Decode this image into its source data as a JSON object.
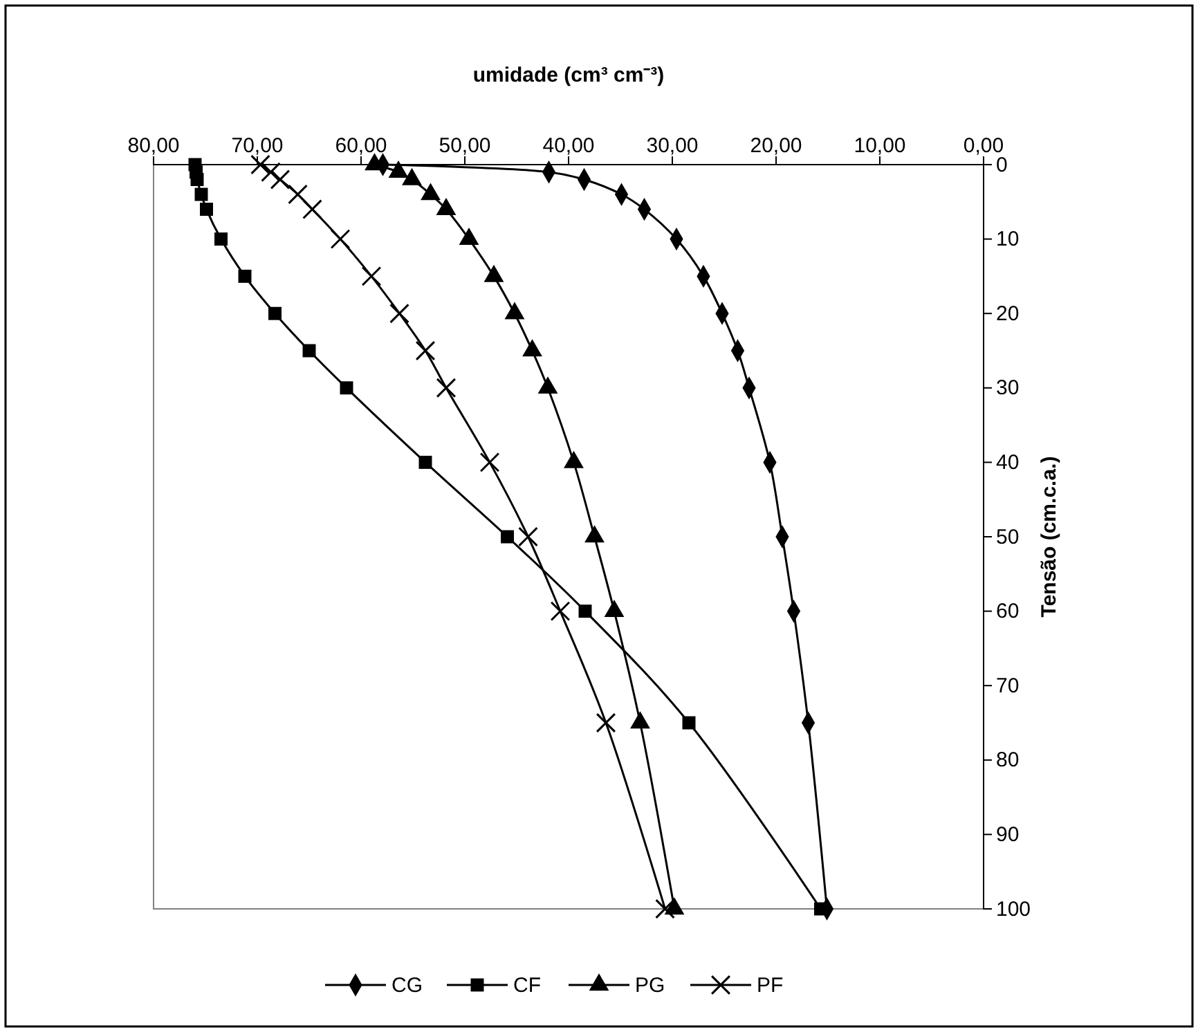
{
  "chart_data": {
    "type": "line",
    "xlabel": "umidade (cm³ cm⁻³)",
    "ylabel": "Tensão (cm.c.a.)",
    "xlim": [
      80,
      0
    ],
    "xticks": [
      {
        "value": 80,
        "label": "80,00"
      },
      {
        "value": 70,
        "label": "70,00"
      },
      {
        "value": 60,
        "label": "60,00"
      },
      {
        "value": 50,
        "label": "50,00"
      },
      {
        "value": 40,
        "label": "40,00"
      },
      {
        "value": 30,
        "label": "30,00"
      },
      {
        "value": 20,
        "label": "20,00"
      },
      {
        "value": 10,
        "label": "10,00"
      },
      {
        "value": 0,
        "label": "0,00"
      }
    ],
    "ylim": [
      100,
      0
    ],
    "yticks": [
      0,
      10,
      20,
      30,
      40,
      50,
      60,
      70,
      80,
      90,
      100
    ],
    "legend": "bottom",
    "grid": false,
    "line_style": "solid",
    "series": [
      {
        "name": "CG",
        "color": "#000000",
        "marker": "diamond",
        "x": [
          57.9,
          41.9,
          38.5,
          34.9,
          32.7,
          29.6,
          27.0,
          25.2,
          23.7,
          22.6,
          20.6,
          19.4,
          18.3,
          16.9,
          15.1
        ],
        "values": [
          0,
          1,
          2,
          4,
          6,
          10,
          15,
          20,
          25,
          30,
          40,
          50,
          60,
          75,
          100
        ]
      },
      {
        "name": "CF",
        "color": "#000000",
        "marker": "square",
        "x": [
          76.0,
          75.9,
          75.8,
          75.4,
          74.9,
          73.5,
          71.2,
          68.3,
          65.0,
          61.4,
          53.8,
          45.9,
          38.4,
          28.4,
          15.7
        ],
        "values": [
          0,
          1,
          2,
          4,
          6,
          10,
          15,
          20,
          25,
          30,
          40,
          50,
          60,
          75,
          100
        ]
      },
      {
        "name": "PG",
        "color": "#000000",
        "marker": "triangle",
        "x": [
          58.7,
          56.4,
          55.1,
          53.3,
          51.8,
          49.6,
          47.2,
          45.2,
          43.5,
          42.0,
          39.5,
          37.5,
          35.6,
          33.1,
          29.8
        ],
        "values": [
          0,
          1,
          2,
          4,
          6,
          10,
          15,
          20,
          25,
          30,
          40,
          50,
          60,
          75,
          100
        ]
      },
      {
        "name": "PF",
        "color": "#000000",
        "marker": "cross",
        "x": [
          69.7,
          68.7,
          67.8,
          66.1,
          64.7,
          62.0,
          59.0,
          56.3,
          53.8,
          51.8,
          47.6,
          43.9,
          40.8,
          36.4,
          30.7
        ],
        "values": [
          0,
          1,
          2,
          4,
          6,
          10,
          15,
          20,
          25,
          30,
          40,
          50,
          60,
          75,
          100
        ]
      }
    ]
  }
}
